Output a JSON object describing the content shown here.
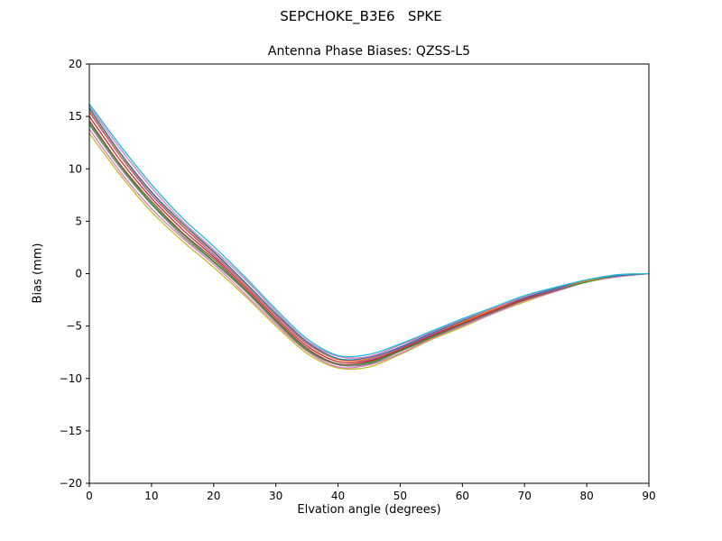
{
  "chart_data": {
    "type": "line",
    "suptitle": "SEPCHOKE_B3E6   SPKE",
    "title": "Antenna Phase Biases: QZSS-L5",
    "xlabel": "Elvation angle (degrees)",
    "ylabel": "Bias (mm)",
    "xlim": [
      0,
      90
    ],
    "ylim": [
      -20,
      20
    ],
    "xticks": [
      0,
      10,
      20,
      30,
      40,
      50,
      60,
      70,
      80,
      90
    ],
    "yticks": [
      -20,
      -15,
      -10,
      -5,
      0,
      5,
      10,
      15,
      20
    ],
    "grid": false,
    "legend": null,
    "x": [
      0,
      5,
      10,
      15,
      20,
      25,
      30,
      35,
      40,
      45,
      50,
      55,
      60,
      65,
      70,
      75,
      80,
      85,
      90
    ],
    "series": [
      {
        "name": "line-01",
        "color": "#bcbd22",
        "values": [
          13.4,
          9.4,
          5.9,
          3.1,
          0.6,
          -2.1,
          -5.0,
          -7.6,
          -9.0,
          -8.9,
          -7.7,
          -6.3,
          -5.1,
          -3.8,
          -2.7,
          -1.7,
          -0.8,
          -0.3,
          0.0
        ]
      },
      {
        "name": "line-02",
        "color": "#e377c2",
        "values": [
          13.8,
          9.7,
          6.2,
          3.4,
          0.9,
          -1.9,
          -4.8,
          -7.4,
          -8.9,
          -8.7,
          -7.6,
          -6.2,
          -5.0,
          -3.8,
          -2.6,
          -1.7,
          -0.8,
          -0.3,
          0.0
        ]
      },
      {
        "name": "line-03",
        "color": "#7f7f7f",
        "values": [
          14.2,
          10.1,
          6.6,
          3.6,
          1.1,
          -1.6,
          -4.6,
          -7.3,
          -8.7,
          -8.6,
          -7.4,
          -6.1,
          -4.9,
          -3.7,
          -2.5,
          -1.6,
          -0.8,
          -0.2,
          0.0
        ]
      },
      {
        "name": "line-04",
        "color": "#2ca02c",
        "values": [
          14.4,
          10.3,
          6.7,
          3.8,
          1.2,
          -1.5,
          -4.5,
          -7.2,
          -8.6,
          -8.5,
          -7.4,
          -6.1,
          -4.8,
          -3.6,
          -2.5,
          -1.6,
          -0.8,
          -0.2,
          0.0
        ]
      },
      {
        "name": "line-05",
        "color": "#8c564b",
        "values": [
          14.6,
          10.4,
          6.9,
          3.9,
          1.4,
          -1.4,
          -4.4,
          -7.1,
          -8.6,
          -8.4,
          -7.3,
          -6.0,
          -4.8,
          -3.6,
          -2.5,
          -1.6,
          -0.7,
          -0.2,
          0.0
        ]
      },
      {
        "name": "line-06",
        "color": "#d62728",
        "values": [
          15.0,
          10.8,
          7.2,
          4.2,
          1.6,
          -1.2,
          -4.2,
          -6.9,
          -8.4,
          -8.3,
          -7.2,
          -5.9,
          -4.7,
          -3.5,
          -2.4,
          -1.5,
          -0.7,
          -0.2,
          0.0
        ]
      },
      {
        "name": "line-07",
        "color": "#9467bd",
        "values": [
          15.4,
          11.2,
          7.5,
          4.5,
          1.8,
          -1.0,
          -4.0,
          -6.7,
          -8.2,
          -8.2,
          -7.1,
          -5.8,
          -4.6,
          -3.4,
          -2.3,
          -1.5,
          -0.7,
          -0.2,
          0.0
        ]
      },
      {
        "name": "line-08",
        "color": "#ff7f0e",
        "values": [
          15.6,
          11.3,
          7.7,
          4.6,
          2.0,
          -0.9,
          -3.9,
          -6.6,
          -8.2,
          -8.1,
          -7.0,
          -5.7,
          -4.6,
          -3.4,
          -2.3,
          -1.4,
          -0.7,
          -0.2,
          0.0
        ]
      },
      {
        "name": "line-09",
        "color": "#1f77b4",
        "values": [
          15.8,
          11.5,
          7.8,
          4.8,
          2.1,
          -0.8,
          -3.8,
          -6.5,
          -8.1,
          -8.0,
          -7.0,
          -5.7,
          -4.5,
          -3.3,
          -2.3,
          -1.4,
          -0.6,
          -0.2,
          0.0
        ]
      },
      {
        "name": "line-10",
        "color": "#e377c2",
        "values": [
          16.0,
          11.9,
          8.2,
          5.0,
          2.3,
          -0.5,
          -3.6,
          -6.4,
          -7.9,
          -7.9,
          -6.8,
          -5.6,
          -4.4,
          -3.3,
          -2.2,
          -1.3,
          -0.6,
          -0.1,
          0.0
        ]
      },
      {
        "name": "line-11",
        "color": "#17becf",
        "values": [
          16.2,
          12.2,
          8.5,
          5.3,
          2.6,
          -0.3,
          -3.4,
          -6.2,
          -7.8,
          -7.7,
          -6.7,
          -5.5,
          -4.3,
          -3.2,
          -2.1,
          -1.3,
          -0.6,
          -0.1,
          0.0
        ]
      }
    ]
  }
}
